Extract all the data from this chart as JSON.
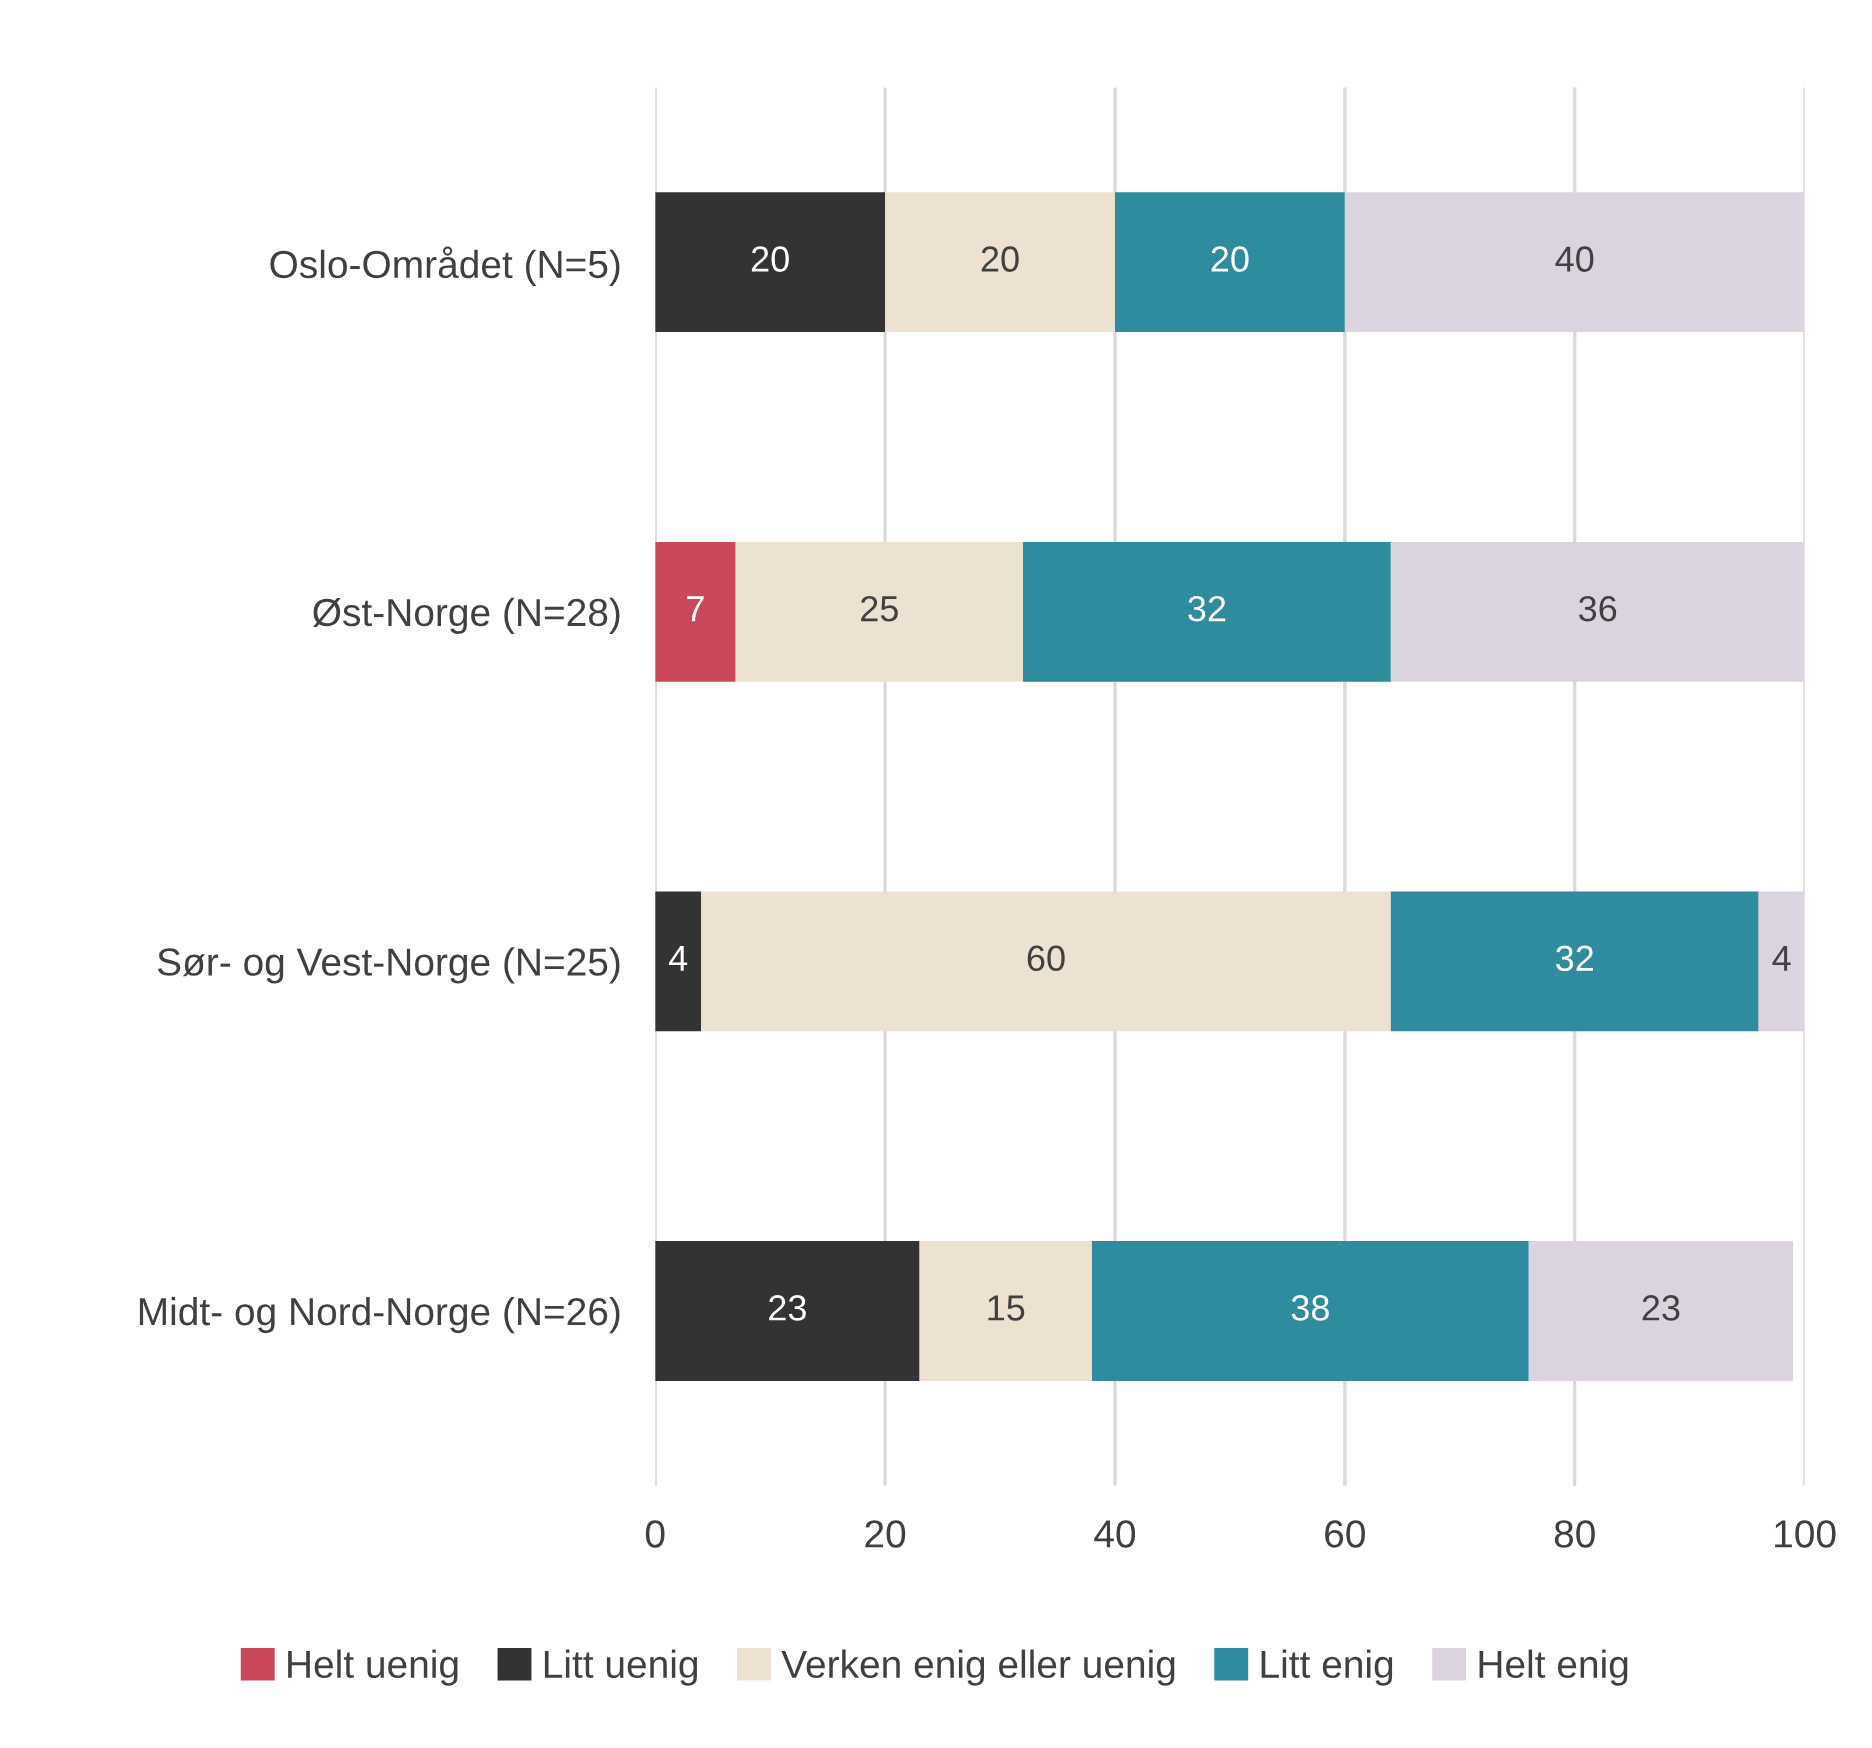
{
  "chart_data": {
    "type": "bar",
    "orientation": "horizontal",
    "stacked": true,
    "categories": [
      "Oslo-Området (N=5)",
      "Øst-Norge (N=28)",
      "Sør- og Vest-Norge (N=25)",
      "Midt- og Nord-Norge (N=26)"
    ],
    "series": [
      {
        "name": "Helt uenig",
        "color": "#c9485b",
        "values": [
          null,
          7,
          null,
          null
        ]
      },
      {
        "name": "Litt uenig",
        "color": "#333333",
        "values": [
          20,
          null,
          4,
          23
        ]
      },
      {
        "name": "Verken enig eller uenig",
        "color": "#ede1d1",
        "values": [
          20,
          25,
          60,
          15
        ]
      },
      {
        "name": "Litt enig",
        "color": "#2e8c9e",
        "values": [
          20,
          32,
          32,
          38
        ]
      },
      {
        "name": "Helt enig",
        "color": "#dbd3e0",
        "values": [
          40,
          36,
          4,
          23
        ]
      }
    ],
    "xlim": [
      0,
      100
    ],
    "xticks": [
      0,
      20,
      40,
      60,
      80,
      100
    ],
    "grid": "x",
    "legend": "bottom",
    "data_labels": true
  }
}
